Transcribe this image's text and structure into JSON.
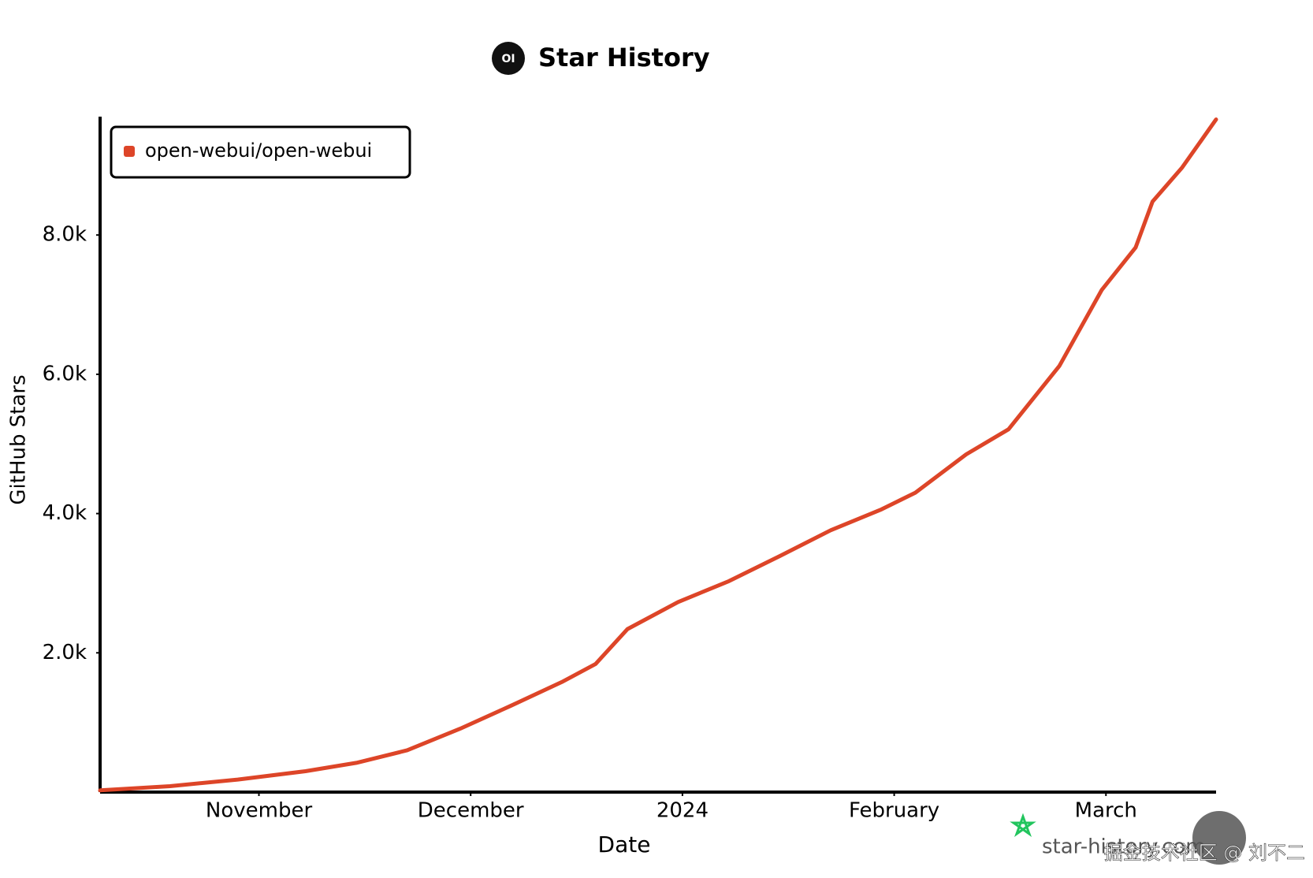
{
  "chart_data": {
    "type": "line",
    "title": "Star History",
    "logo_text": "OI",
    "x_label": "Date",
    "y_label": "GitHub Stars",
    "xlim": [
      10.25,
      15.52
    ],
    "xticks": [
      {
        "value": 11,
        "label": "November"
      },
      {
        "value": 12,
        "label": "December"
      },
      {
        "value": 13,
        "label": "2024"
      },
      {
        "value": 14,
        "label": "February"
      },
      {
        "value": 15,
        "label": "March"
      }
    ],
    "ylim": [
      0,
      9700
    ],
    "yticks": [
      {
        "value": 2000,
        "label": "2.0k"
      },
      {
        "value": 4000,
        "label": "4.0k"
      },
      {
        "value": 6000,
        "label": "6.0k"
      },
      {
        "value": 8000,
        "label": "8.0k"
      }
    ],
    "grid": false,
    "legend": "top-left",
    "x": [
      10.25,
      10.58,
      10.9,
      11.22,
      11.46,
      11.7,
      11.95,
      12.19,
      12.43,
      12.59,
      12.74,
      12.98,
      13.22,
      13.46,
      13.7,
      13.94,
      14.1,
      14.34,
      14.54,
      14.78,
      14.98,
      15.14,
      15.22,
      15.36,
      15.52
    ],
    "series": [
      {
        "name": "open-webui/open-webui",
        "color": "#dd4528",
        "values": [
          25,
          85,
          180,
          300,
          420,
          600,
          910,
          1240,
          1580,
          1840,
          2340,
          2730,
          3030,
          3390,
          3760,
          4060,
          4300,
          4850,
          5210,
          6120,
          7210,
          7820,
          8480,
          8970,
          9660
        ]
      }
    ],
    "watermark": "star-history.com",
    "overlay_text": "掘金技术社区 @ 刘不二"
  }
}
